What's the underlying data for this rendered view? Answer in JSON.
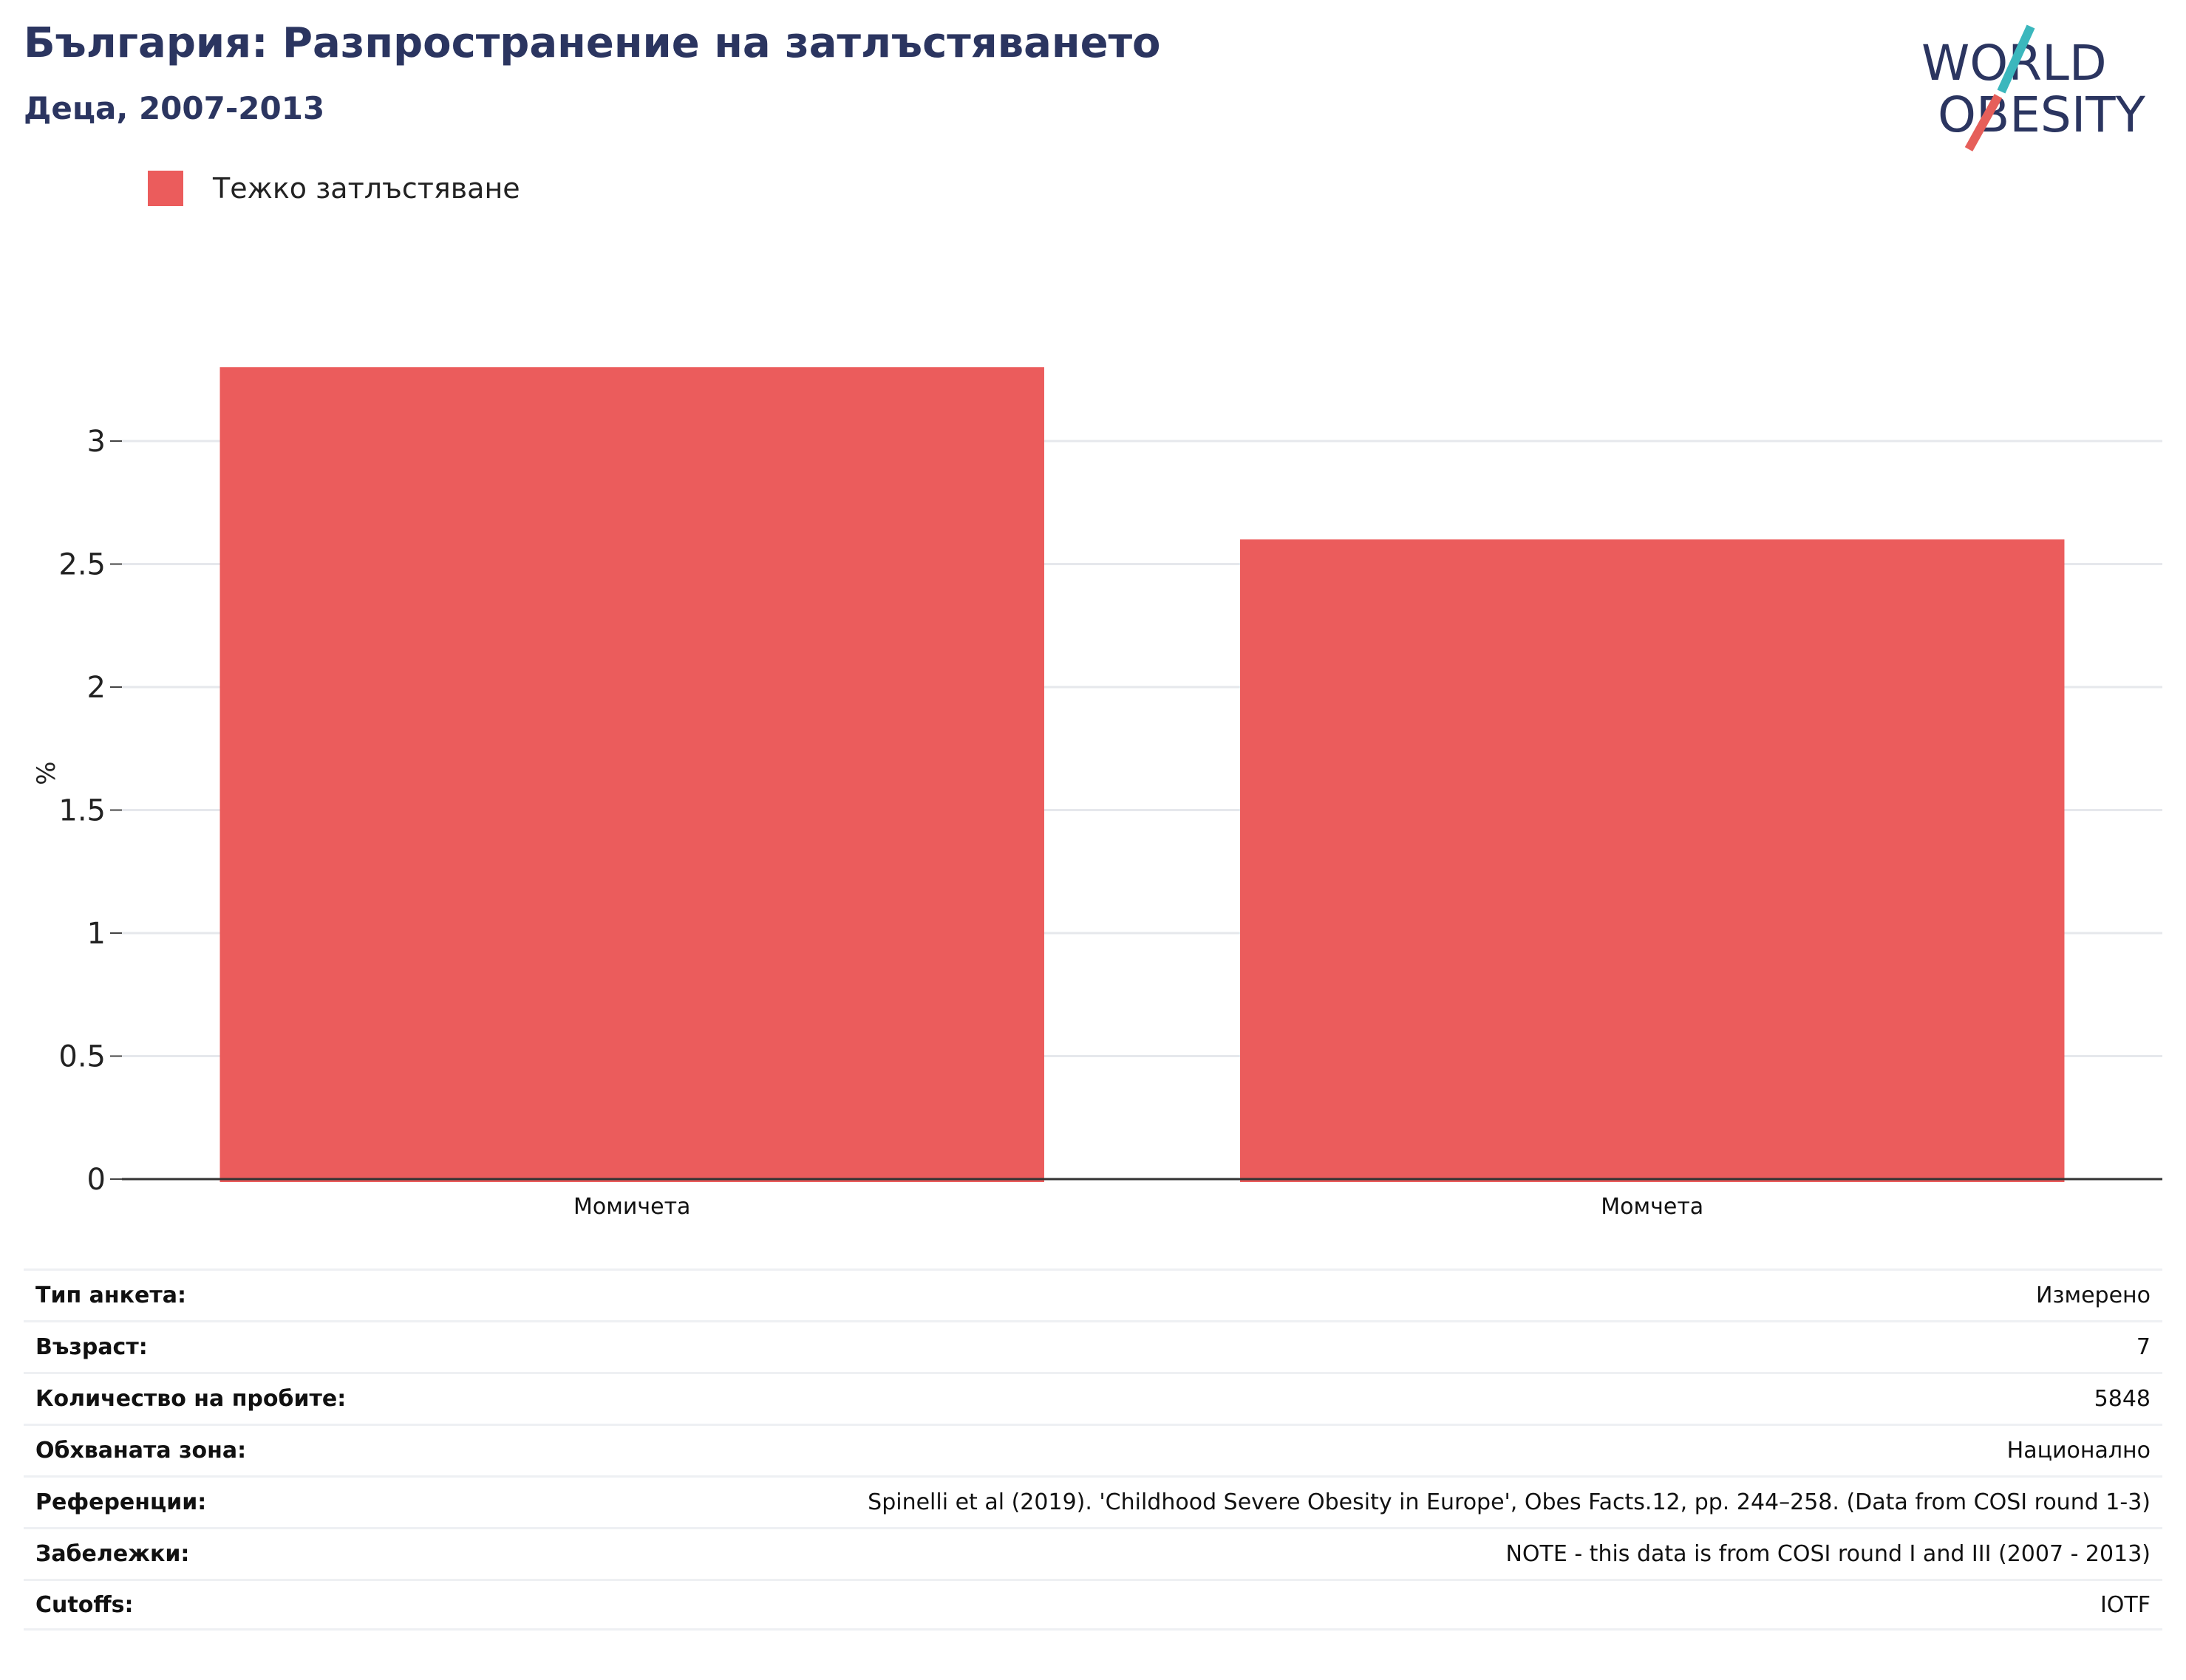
{
  "header": {
    "title": "България: Разпространение на затлъстяването",
    "subtitle": "Деца, 2007-2013"
  },
  "logo": {
    "line1": "WORLD",
    "line2": "OBESITY",
    "text_color": "#2b3560",
    "slash_top_color": "#3bb7bd",
    "slash_bottom_color": "#e65f5a"
  },
  "legend": {
    "label": "Тежко затлъстяване",
    "color": "#eb5c5c"
  },
  "chart_data": {
    "type": "bar",
    "categories": [
      "Момичета",
      "Момчета"
    ],
    "series": [
      {
        "name": "Тежко затлъстяване",
        "values": [
          3.3,
          2.6
        ],
        "color": "#eb5c5c"
      }
    ],
    "ylabel": "%",
    "xlabel": "",
    "ylim": [
      0,
      3.3
    ],
    "yticks": [
      0,
      0.5,
      1,
      1.5,
      2,
      2.5,
      3
    ],
    "ytick_labels": [
      "0",
      "0.5",
      "1",
      "1.5",
      "2",
      "2.5",
      "3"
    ],
    "grid": true
  },
  "info": [
    {
      "label": "Тип анкета:",
      "value": "Измерено"
    },
    {
      "label": "Възраст:",
      "value": "7"
    },
    {
      "label": "Количество на пробите:",
      "value": "5848"
    },
    {
      "label": "Обхваната зона:",
      "value": "Национално"
    },
    {
      "label": "Референции:",
      "value": "Spinelli et al (2019). 'Childhood Severe Obesity in Europe', Obes Facts.12, pp. 244–258. (Data from COSI round 1-3)"
    },
    {
      "label": "Забележки:",
      "value": "NOTE - this data is from COSI round I and III (2007 - 2013)"
    },
    {
      "label": "Cutoffs:",
      "value": "IOTF"
    }
  ]
}
